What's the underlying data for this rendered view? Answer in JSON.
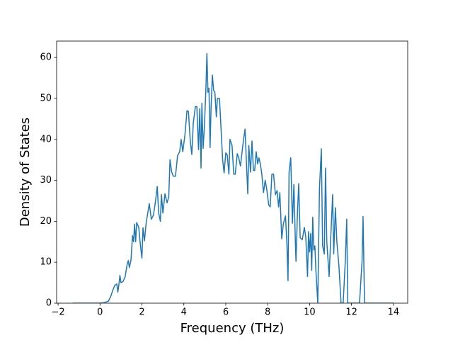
{
  "chart_data": {
    "type": "line",
    "xlabel": "Frequency (THz)",
    "ylabel": "Density of States",
    "x": [
      -1.3,
      -0.5,
      0,
      0.2,
      0.4,
      0.5,
      0.6,
      0.7,
      0.8,
      0.85,
      0.9,
      0.95,
      1.0,
      1.1,
      1.2,
      1.3,
      1.35,
      1.4,
      1.48,
      1.55,
      1.6,
      1.65,
      1.7,
      1.75,
      1.85,
      1.92,
      2.0,
      2.05,
      2.12,
      2.2,
      2.35,
      2.45,
      2.55,
      2.65,
      2.73,
      2.8,
      2.88,
      2.93,
      3.0,
      3.1,
      3.2,
      3.28,
      3.34,
      3.42,
      3.5,
      3.6,
      3.7,
      3.8,
      3.87,
      3.95,
      4.05,
      4.15,
      4.22,
      4.3,
      4.38,
      4.45,
      4.55,
      4.62,
      4.7,
      4.76,
      4.82,
      4.86,
      4.92,
      4.98,
      5.05,
      5.1,
      5.15,
      5.2,
      5.25,
      5.3,
      5.36,
      5.42,
      5.48,
      5.55,
      5.6,
      5.7,
      5.77,
      5.85,
      5.92,
      6.0,
      6.07,
      6.15,
      6.2,
      6.3,
      6.38,
      6.45,
      6.55,
      6.62,
      6.7,
      6.78,
      6.85,
      6.92,
      6.98,
      7.05,
      7.1,
      7.18,
      7.25,
      7.32,
      7.38,
      7.45,
      7.52,
      7.58,
      7.65,
      7.72,
      7.8,
      7.88,
      7.95,
      8.05,
      8.12,
      8.2,
      8.28,
      8.37,
      8.45,
      8.52,
      8.58,
      8.67,
      8.75,
      8.85,
      8.92,
      8.97,
      9.02,
      9.1,
      9.18,
      9.25,
      9.32,
      9.35,
      9.42,
      9.48,
      9.55,
      9.65,
      9.75,
      9.82,
      9.9,
      9.95,
      10.0,
      10.05,
      10.1,
      10.15,
      10.2,
      10.25,
      10.3,
      10.39,
      10.47,
      10.56,
      10.62,
      10.7,
      10.76,
      10.82,
      10.93,
      11.0,
      11.1,
      11.15,
      11.23,
      11.3,
      11.4,
      11.5,
      11.6,
      11.7,
      11.77,
      11.82,
      12.0,
      12.38,
      12.5,
      12.55,
      12.62,
      12.7,
      13.0,
      14.0
    ],
    "series": [
      {
        "color": "#1f77b4",
        "values": [
          0,
          0,
          0,
          0.1,
          0.5,
          1.5,
          3,
          4.3,
          4.7,
          2.7,
          4.5,
          6.8,
          5,
          5.3,
          6.5,
          9.6,
          10.4,
          8.7,
          10.6,
          16.5,
          15,
          19.3,
          15,
          19.7,
          18.5,
          14.5,
          11,
          18.4,
          15.2,
          19.5,
          24.3,
          20.5,
          21.5,
          25,
          28.5,
          22,
          20,
          26.5,
          22,
          26.7,
          24.5,
          26,
          35,
          32,
          31,
          31,
          36,
          37,
          40,
          37,
          41,
          47,
          46.8,
          40,
          36.3,
          44,
          48,
          48,
          37.5,
          47.5,
          33,
          48.8,
          37.8,
          43,
          52,
          61,
          51.5,
          52.5,
          38,
          48,
          55.7,
          52,
          51.5,
          45.5,
          50,
          50,
          43,
          35,
          31.8,
          36.7,
          36.2,
          31.5,
          40,
          38.5,
          31.5,
          31.5,
          36.5,
          35.5,
          33.5,
          37,
          40,
          42.5,
          35,
          26.7,
          38.5,
          32,
          39.6,
          32.4,
          32.4,
          37,
          34,
          35.5,
          34,
          31.5,
          27,
          30,
          28,
          24,
          23.5,
          31.5,
          31.5,
          26.5,
          27.5,
          23.5,
          27,
          15.7,
          19.5,
          21.3,
          14,
          5.5,
          32,
          35.5,
          19.5,
          29,
          15,
          10.2,
          22,
          29.2,
          16,
          15.5,
          18.5,
          16,
          6.5,
          17.5,
          12.5,
          17,
          8,
          21,
          13,
          14,
          8,
          0,
          28,
          37.7,
          14,
          12,
          33,
          15,
          6.5,
          15,
          26.5,
          12,
          23.3,
          15,
          9,
          0,
          0,
          10,
          20.5,
          0,
          0,
          0,
          10,
          21.2,
          0,
          0,
          0,
          0
        ]
      }
    ],
    "xlim": [
      -2.07,
      14.68
    ],
    "ylim": [
      0,
      64
    ],
    "xticks": [
      {
        "value": -2,
        "label": "−2"
      },
      0,
      2,
      4,
      6,
      8,
      10,
      12,
      14
    ],
    "yticks": [
      0,
      10,
      20,
      30,
      40,
      50,
      60
    ],
    "grid": false
  }
}
